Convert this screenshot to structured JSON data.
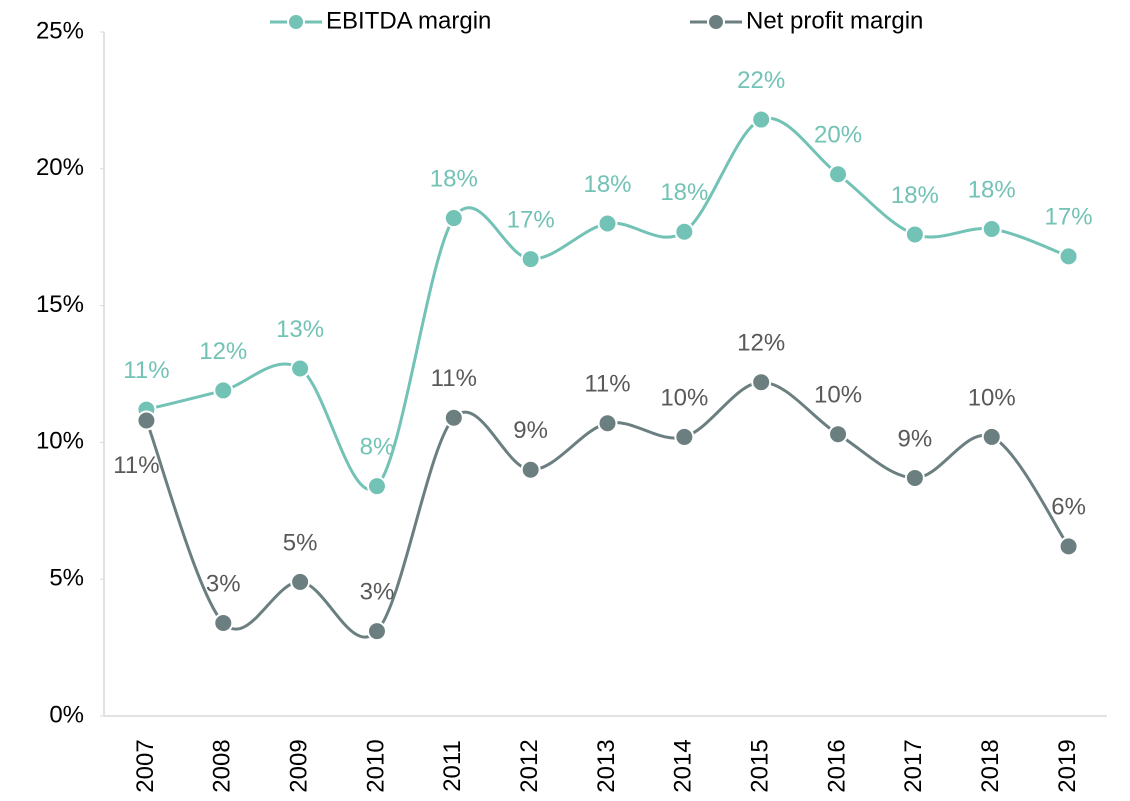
{
  "chart_data": {
    "type": "line",
    "categories": [
      "2007",
      "2008",
      "2009",
      "2010",
      "2011",
      "2012",
      "2013",
      "2014",
      "2015",
      "2016",
      "2017",
      "2018",
      "2019"
    ],
    "series": [
      {
        "name": "EBITDA margin",
        "color": "#72c2b6",
        "values": [
          11.2,
          11.9,
          12.7,
          8.4,
          18.2,
          16.7,
          18.0,
          17.7,
          21.8,
          19.8,
          17.6,
          17.8,
          16.8
        ],
        "value_labels": [
          "11%",
          "12%",
          "13%",
          "8%",
          "18%",
          "17%",
          "18%",
          "18%",
          "22%",
          "20%",
          "18%",
          "18%",
          "17%"
        ]
      },
      {
        "name": "Net profit margin",
        "color": "#6b7f80",
        "values": [
          10.8,
          3.4,
          4.9,
          3.1,
          10.9,
          9.0,
          10.7,
          10.2,
          12.2,
          10.3,
          8.7,
          10.2,
          6.2
        ],
        "value_labels": [
          "11%",
          "3%",
          "5%",
          "3%",
          "11%",
          "9%",
          "11%",
          "10%",
          "12%",
          "10%",
          "9%",
          "10%",
          "6%"
        ]
      }
    ],
    "ylim": [
      0,
      25
    ],
    "yticks": [
      {
        "value": 0,
        "label": "0%"
      },
      {
        "value": 5,
        "label": "5%"
      },
      {
        "value": 10,
        "label": "10%"
      },
      {
        "value": 15,
        "label": "15%"
      },
      {
        "value": 20,
        "label": "20%"
      },
      {
        "value": 25,
        "label": "25%"
      }
    ],
    "legend": "top"
  }
}
